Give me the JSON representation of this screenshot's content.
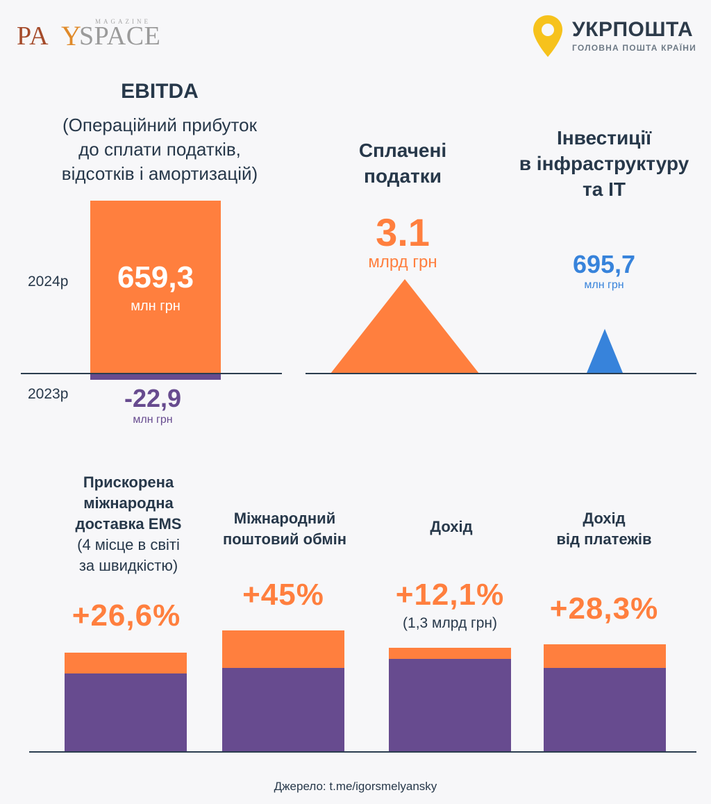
{
  "logos": {
    "payspace": {
      "pa": "PA",
      "y": "Y",
      "space": "SPACE",
      "magazine": "MAGAZINE"
    },
    "ukrposhta": {
      "name": "УКРПОШТА",
      "tagline": "ГОЛОВНА ПОШТА КРАЇНИ"
    }
  },
  "colors": {
    "orange": "#ff7f3e",
    "purple": "#674b8f",
    "blue": "#3783db",
    "text": "#27384a"
  },
  "ebitda": {
    "title": "EBITDA",
    "subtitle_lines": [
      "(Операційний прибуток",
      "до сплати податків,",
      "відсотків і амортизацій)"
    ],
    "year_2024": "2024р",
    "year_2023": "2023р",
    "value_2024": "659,3",
    "value_2023": "-22,9",
    "unit": "млн грн"
  },
  "taxes": {
    "title_lines": [
      "Сплачені",
      "податки"
    ],
    "value": "3.1",
    "unit": "млрд грн"
  },
  "invest": {
    "title_lines": [
      "Інвестиції",
      "в інфраструктуру",
      "та ІТ"
    ],
    "value": "695,7",
    "unit": "млн грн"
  },
  "growth": [
    {
      "title_lines": [
        "Прискорена",
        "міжнародна",
        "доставка EMS"
      ],
      "note_lines": [
        "(4 місце в світі",
        "за швидкістю)"
      ],
      "value": "+26,6%",
      "growth_pct": 26.6
    },
    {
      "title_lines": [
        "Міжнародний",
        "поштовий обмін"
      ],
      "note_lines": [],
      "value": "+45%",
      "growth_pct": 45
    },
    {
      "title_lines": [
        "Дохід"
      ],
      "note_lines": [],
      "value": "+12,1%",
      "value_note": "(1,3 млрд грн)",
      "growth_pct": 12.1
    },
    {
      "title_lines": [
        "Дохід",
        "від платежів"
      ],
      "note_lines": [],
      "value": "+28,3%",
      "growth_pct": 28.3
    }
  ],
  "source": "Джерело: t.me/igorsmelyansky",
  "chart_data": [
    {
      "type": "bar",
      "title": "EBITDA",
      "categories": [
        "2024р",
        "2023р"
      ],
      "values": [
        659.3,
        -22.9
      ],
      "unit": "млн грн"
    },
    {
      "type": "bar",
      "title": "Сплачені податки / Інвестиції в інфраструктуру та ІТ",
      "categories": [
        "Сплачені податки",
        "Інвестиції в інфраструктуру та ІТ"
      ],
      "values": [
        3100,
        695.7
      ],
      "unit": "млн грн"
    },
    {
      "type": "bar",
      "categories": [
        "Прискорена міжнародна доставка EMS",
        "Міжнародний поштовий обмін",
        "Дохід",
        "Дохід від платежів"
      ],
      "values": [
        26.6,
        45,
        12.1,
        28.3
      ],
      "unit": "%"
    }
  ]
}
